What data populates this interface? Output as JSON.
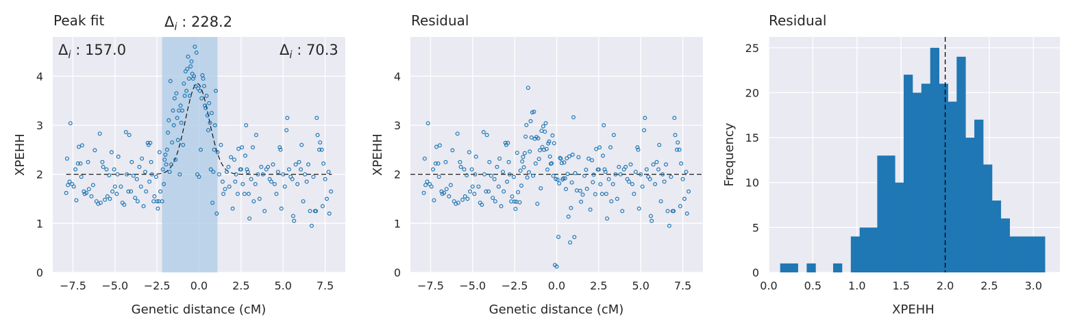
{
  "colors": {
    "axes_bg": "#eaeaf2",
    "grid": "#ffffff",
    "marker": "#1f77b4",
    "bar": "#1f77b4",
    "span": "#aecbe5",
    "dash": "#000000",
    "text": "#262626"
  },
  "chart_data": [
    {
      "type": "scatter",
      "title": "Peak fit",
      "xlabel": "Genetic distance (cM)",
      "ylabel": "XPEHH",
      "xlim": [
        -8.7,
        8.7
      ],
      "ylim": [
        0,
        4.8
      ],
      "xticks": [
        -7.5,
        -5.0,
        -2.5,
        0.0,
        2.5,
        5.0,
        7.5
      ],
      "xtick_labels": [
        "−7.5",
        "−5.0",
        "−2.5",
        "0.0",
        "2.5",
        "5.0",
        "7.5"
      ],
      "yticks": [
        0,
        1,
        2,
        3,
        4
      ],
      "ytick_labels": [
        "0",
        "1",
        "2",
        "3",
        "4"
      ],
      "grid": true,
      "baseline": 2.0,
      "peak": {
        "center": -0.1,
        "height": 1.85,
        "width": 0.7
      },
      "highlight_span": [
        -2.2,
        1.1
      ],
      "annotations": {
        "left": {
          "prefix": "Δ",
          "sub": "i",
          "text": " : 157.0"
        },
        "center": {
          "prefix": "Δ",
          "sub": "i",
          "text": " : 228.2"
        },
        "right": {
          "prefix": "Δ",
          "sub": "i",
          "text": " : 70.3"
        }
      },
      "points": [
        [
          -7.9,
          1.62
        ],
        [
          -7.85,
          2.32
        ],
        [
          -7.8,
          1.78
        ],
        [
          -7.7,
          1.85
        ],
        [
          -7.65,
          3.04
        ],
        [
          -7.55,
          1.8
        ],
        [
          -7.45,
          1.75
        ],
        [
          -7.35,
          2.1
        ],
        [
          -7.3,
          1.47
        ],
        [
          -7.2,
          2.22
        ],
        [
          -7.15,
          2.56
        ],
        [
          -7.05,
          2.22
        ],
        [
          -7.0,
          1.95
        ],
        [
          -6.95,
          2.59
        ],
        [
          -6.85,
          1.65
        ],
        [
          -6.8,
          1.6
        ],
        [
          -6.7,
          1.62
        ],
        [
          -6.6,
          2.25
        ],
        [
          -6.55,
          1.7
        ],
        [
          -6.4,
          1.55
        ],
        [
          -6.3,
          1.78
        ],
        [
          -6.2,
          2.49
        ],
        [
          -6.1,
          1.45
        ],
        [
          -6.0,
          1.4
        ],
        [
          -5.9,
          2.83
        ],
        [
          -5.85,
          1.42
        ],
        [
          -5.75,
          2.25
        ],
        [
          -5.7,
          2.15
        ],
        [
          -5.6,
          1.48
        ],
        [
          -5.5,
          2.1
        ],
        [
          -5.45,
          1.55
        ],
        [
          -5.35,
          1.98
        ],
        [
          -5.3,
          1.5
        ],
        [
          -5.2,
          2.45
        ],
        [
          -5.15,
          1.65
        ],
        [
          -5.05,
          2.1
        ],
        [
          -5.0,
          1.75
        ],
        [
          -4.9,
          1.6
        ],
        [
          -4.85,
          2.0
        ],
        [
          -4.8,
          2.36
        ],
        [
          -4.65,
          1.75
        ],
        [
          -4.55,
          1.42
        ],
        [
          -4.45,
          1.38
        ],
        [
          -4.35,
          2.86
        ],
        [
          -4.3,
          2.0
        ],
        [
          -4.2,
          1.65
        ],
        [
          -4.15,
          2.8
        ],
        [
          -4.05,
          1.65
        ],
        [
          -4.0,
          2.25
        ],
        [
          -3.9,
          1.97
        ],
        [
          -3.8,
          1.52
        ],
        [
          -3.7,
          1.9
        ],
        [
          -3.65,
          1.45
        ],
        [
          -3.55,
          2.15
        ],
        [
          -3.45,
          1.75
        ],
        [
          -3.4,
          2.32
        ],
        [
          -3.3,
          1.35
        ],
        [
          -3.2,
          2.05
        ],
        [
          -3.15,
          1.65
        ],
        [
          -3.05,
          2.64
        ],
        [
          -3.0,
          2.6
        ],
        [
          -2.95,
          1.85
        ],
        [
          -2.9,
          2.64
        ],
        [
          -2.85,
          2.25
        ],
        [
          -2.8,
          2.0
        ],
        [
          -2.7,
          1.45
        ],
        [
          -2.65,
          1.55
        ],
        [
          -2.55,
          1.95
        ],
        [
          -2.5,
          1.45
        ],
        [
          -2.45,
          1.3
        ],
        [
          -2.4,
          1.45
        ],
        [
          -2.35,
          2.45
        ],
        [
          -2.3,
          1.65
        ],
        [
          -2.2,
          1.45
        ],
        [
          -2.15,
          2.1
        ],
        [
          -2.1,
          1.8
        ],
        [
          -2.05,
          2.3
        ],
        [
          -2.0,
          2.4
        ],
        [
          -1.95,
          2.2
        ],
        [
          -1.9,
          2.5
        ],
        [
          -1.85,
          2.85
        ],
        [
          -1.8,
          3.1
        ],
        [
          -1.75,
          2.05
        ],
        [
          -1.7,
          3.9
        ],
        [
          -1.65,
          2.2
        ],
        [
          -1.6,
          2.65
        ],
        [
          -1.55,
          3.3
        ],
        [
          -1.5,
          3.0
        ],
        [
          -1.45,
          3.55
        ],
        [
          -1.4,
          2.3
        ],
        [
          -1.35,
          3.65
        ],
        [
          -1.3,
          3.15
        ],
        [
          -1.25,
          2.7
        ],
        [
          -1.2,
          3.3
        ],
        [
          -1.15,
          2.0
        ],
        [
          -1.1,
          3.4
        ],
        [
          -1.05,
          3.05
        ],
        [
          -1.0,
          3.3
        ],
        [
          -0.95,
          2.6
        ],
        [
          -0.9,
          3.85
        ],
        [
          -0.85,
          3.6
        ],
        [
          -0.8,
          4.1
        ],
        [
          -0.75,
          3.7
        ],
        [
          -0.7,
          4.15
        ],
        [
          -0.65,
          4.4
        ],
        [
          -0.6,
          3.95
        ],
        [
          -0.55,
          3.6
        ],
        [
          -0.5,
          4.2
        ],
        [
          -0.45,
          4.3
        ],
        [
          -0.4,
          4.05
        ],
        [
          -0.35,
          3.95
        ],
        [
          -0.3,
          4.0
        ],
        [
          -0.25,
          4.6
        ],
        [
          -0.2,
          3.8
        ],
        [
          -0.15,
          4.48
        ],
        [
          -0.1,
          2.0
        ],
        [
          -0.05,
          3.75
        ],
        [
          0.0,
          1.95
        ],
        [
          0.05,
          3.7
        ],
        [
          0.1,
          2.5
        ],
        [
          0.15,
          3.55
        ],
        [
          0.2,
          4.02
        ],
        [
          0.25,
          3.95
        ],
        [
          0.3,
          3.8
        ],
        [
          0.35,
          3.4
        ],
        [
          0.4,
          3.35
        ],
        [
          0.45,
          3.6
        ],
        [
          0.5,
          3.2
        ],
        [
          0.55,
          2.9
        ],
        [
          0.6,
          3.45
        ],
        [
          0.65,
          3.05
        ],
        [
          0.7,
          2.1
        ],
        [
          0.75,
          3.25
        ],
        [
          0.8,
          1.42
        ],
        [
          0.85,
          2.05
        ],
        [
          0.9,
          2.5
        ],
        [
          0.95,
          3.0
        ],
        [
          1.0,
          3.7
        ],
        [
          1.05,
          1.2
        ],
        [
          1.1,
          2.45
        ],
        [
          1.2,
          2.0
        ],
        [
          1.3,
          2.6
        ],
        [
          1.4,
          1.85
        ],
        [
          1.45,
          1.6
        ],
        [
          1.55,
          1.7
        ],
        [
          1.65,
          2.05
        ],
        [
          1.75,
          2.15
        ],
        [
          1.8,
          1.75
        ],
        [
          1.9,
          2.35
        ],
        [
          2.0,
          1.3
        ],
        [
          2.1,
          2.3
        ],
        [
          2.15,
          1.85
        ],
        [
          2.2,
          2.0
        ],
        [
          2.3,
          1.6
        ],
        [
          2.35,
          2.52
        ],
        [
          2.45,
          2.1
        ],
        [
          2.5,
          2.1
        ],
        [
          2.55,
          2.55
        ],
        [
          2.6,
          1.8
        ],
        [
          2.7,
          1.6
        ],
        [
          2.75,
          2.38
        ],
        [
          2.8,
          3.0
        ],
        [
          2.85,
          2.1
        ],
        [
          2.9,
          2.05
        ],
        [
          2.95,
          1.6
        ],
        [
          3.0,
          1.1
        ],
        [
          3.1,
          1.9
        ],
        [
          3.2,
          2.55
        ],
        [
          3.25,
          1.45
        ],
        [
          3.35,
          1.8
        ],
        [
          3.4,
          2.8
        ],
        [
          3.5,
          2.0
        ],
        [
          3.6,
          1.5
        ],
        [
          3.7,
          2.15
        ],
        [
          3.8,
          2.0
        ],
        [
          3.9,
          1.25
        ],
        [
          4.0,
          2.1
        ],
        [
          4.1,
          2.15
        ],
        [
          4.2,
          1.9
        ],
        [
          4.3,
          1.85
        ],
        [
          4.4,
          2.2
        ],
        [
          4.5,
          1.8
        ],
        [
          4.6,
          1.6
        ],
        [
          4.7,
          2.05
        ],
        [
          4.8,
          2.55
        ],
        [
          4.85,
          2.5
        ],
        [
          4.9,
          1.3
        ],
        [
          5.0,
          2.0
        ],
        [
          5.1,
          1.75
        ],
        [
          5.2,
          2.9
        ],
        [
          5.25,
          3.15
        ],
        [
          5.35,
          2.1
        ],
        [
          5.45,
          1.95
        ],
        [
          5.55,
          1.9
        ],
        [
          5.6,
          1.15
        ],
        [
          5.65,
          1.05
        ],
        [
          5.75,
          2.2
        ],
        [
          5.85,
          1.8
        ],
        [
          5.95,
          2.25
        ],
        [
          6.05,
          2.1
        ],
        [
          6.1,
          2.6
        ],
        [
          6.2,
          1.45
        ],
        [
          6.3,
          2.0
        ],
        [
          6.4,
          1.85
        ],
        [
          6.5,
          2.2
        ],
        [
          6.6,
          1.25
        ],
        [
          6.7,
          0.95
        ],
        [
          6.8,
          1.95
        ],
        [
          6.9,
          1.25
        ],
        [
          6.95,
          1.25
        ],
        [
          7.0,
          3.15
        ],
        [
          7.05,
          2.8
        ],
        [
          7.15,
          2.5
        ],
        [
          7.2,
          2.65
        ],
        [
          7.3,
          2.5
        ],
        [
          7.35,
          1.35
        ],
        [
          7.4,
          2.22
        ],
        [
          7.5,
          1.9
        ],
        [
          7.6,
          1.5
        ],
        [
          7.7,
          2.05
        ],
        [
          7.75,
          1.2
        ],
        [
          7.85,
          1.65
        ]
      ]
    },
    {
      "type": "scatter",
      "title": "Residual",
      "xlabel": "Genetic distance (cM)",
      "ylabel": "XPEHH",
      "xlim": [
        -8.7,
        8.7
      ],
      "ylim": [
        0,
        4.8
      ],
      "xticks": [
        -7.5,
        -5.0,
        -2.5,
        0.0,
        2.5,
        5.0,
        7.5
      ],
      "xtick_labels": [
        "−7.5",
        "−5.0",
        "−2.5",
        "0.0",
        "2.5",
        "5.0",
        "7.5"
      ],
      "yticks": [
        0,
        1,
        2,
        3,
        4
      ],
      "ytick_labels": [
        "0",
        "1",
        "2",
        "3",
        "4"
      ],
      "grid": true,
      "baseline": 2.0
    },
    {
      "type": "bar",
      "title": "Residual",
      "xlabel": "XPEHH",
      "ylabel": "Frequency",
      "xlim": [
        0.0,
        3.3
      ],
      "ylim": [
        0,
        26.2
      ],
      "xticks": [
        0.0,
        0.5,
        1.0,
        1.5,
        2.0,
        2.5,
        3.0
      ],
      "xtick_labels": [
        "0.0",
        "0.5",
        "1.0",
        "1.5",
        "2.0",
        "2.5",
        "3.0"
      ],
      "yticks": [
        0,
        5,
        10,
        15,
        20,
        25
      ],
      "ytick_labels": [
        "0",
        "5",
        "10",
        "15",
        "20",
        "25"
      ],
      "grid": true,
      "vline": 2.0,
      "bin_start": 0.13,
      "bin_width": 0.1,
      "counts": [
        1,
        1,
        0,
        1,
        0,
        0,
        1,
        0,
        4,
        5,
        5,
        13,
        13,
        10,
        22,
        20,
        21,
        25,
        21,
        19,
        24,
        15,
        17,
        12,
        8,
        6,
        4,
        4,
        4,
        4
      ]
    }
  ]
}
